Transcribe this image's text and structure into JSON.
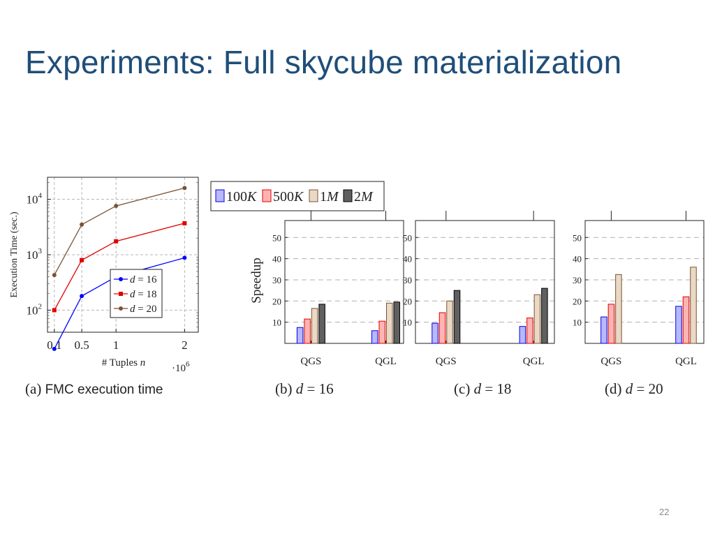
{
  "slide": {
    "title": "Experiments: Full skycube materialization",
    "page_number": "22"
  },
  "chart_data": [
    {
      "type": "line",
      "caption_prefix": "(a)",
      "caption_text": "FMC execution time",
      "xlabel": "# Tuples",
      "xlabel_var": "n",
      "x_multiplier": "·10",
      "x_multiplier_exp": "6",
      "ylabel": "Execution Time (sec.)",
      "y_scale": "log",
      "x": [
        0.1,
        0.5,
        1,
        2
      ],
      "xticks": [
        0.1,
        0.5,
        1,
        2
      ],
      "xtick_labels": [
        "0.1",
        "0.5",
        "1",
        "2"
      ],
      "xlim": [
        0,
        2.2
      ],
      "ylim": [
        40,
        25000
      ],
      "yticks": [
        100,
        1000,
        10000
      ],
      "ytick_base": "10",
      "ytick_exps": [
        "2",
        "3",
        "4"
      ],
      "grid": true,
      "legend_position": "bottom-right",
      "series": [
        {
          "name_var": "d",
          "name_rest": " = 16",
          "color": "#0000ff",
          "marker": "circle",
          "values": [
            20,
            180,
            400,
            880
          ]
        },
        {
          "name_var": "d",
          "name_rest": " = 18",
          "color": "#e00000",
          "marker": "square",
          "values": [
            100,
            800,
            1750,
            3700
          ]
        },
        {
          "name_var": "d",
          "name_rest": " = 20",
          "color": "#7a5236",
          "marker": "circle",
          "values": [
            430,
            3500,
            7600,
            16000
          ]
        }
      ]
    },
    {
      "type": "bar",
      "caption_prefix": "(b)",
      "caption_var": "d",
      "caption_rest": " = 16",
      "ylabel": "Speedup",
      "categories": [
        "QGS",
        "QGL"
      ],
      "ylim": [
        0,
        58
      ],
      "yticks": [
        10,
        20,
        30,
        40,
        50
      ],
      "grid": true,
      "series": [
        {
          "values": [
            7.5,
            6
          ]
        },
        {
          "values": [
            11.5,
            10.5
          ]
        },
        {
          "values": [
            16.5,
            19
          ]
        },
        {
          "values": [
            18.5,
            19.5
          ]
        }
      ]
    },
    {
      "type": "bar",
      "caption_prefix": "(c)",
      "caption_var": "d",
      "caption_rest": " = 18",
      "categories": [
        "QGS",
        "QGL"
      ],
      "ylim": [
        0,
        58
      ],
      "yticks": [
        10,
        20,
        30,
        40,
        50
      ],
      "grid": true,
      "series": [
        {
          "values": [
            9.5,
            8
          ]
        },
        {
          "values": [
            14.5,
            12
          ]
        },
        {
          "values": [
            20,
            23
          ]
        },
        {
          "values": [
            25,
            26
          ]
        }
      ]
    },
    {
      "type": "bar",
      "caption_prefix": "(d)",
      "caption_var": "d",
      "caption_rest": " = 20",
      "categories": [
        "QGS",
        "QGL"
      ],
      "ylim": [
        0,
        58
      ],
      "yticks": [
        10,
        20,
        30,
        40,
        50
      ],
      "grid": true,
      "series": [
        {
          "values": [
            12.5,
            17.5
          ]
        },
        {
          "values": [
            18.5,
            22
          ]
        },
        {
          "values": [
            32.5,
            36
          ]
        }
      ]
    }
  ],
  "bar_legend": {
    "position": "top",
    "items": [
      {
        "num": "100",
        "unit": "K",
        "fill": "#b8b8ff",
        "stroke": "#0000dd"
      },
      {
        "num": "500",
        "unit": "K",
        "fill": "#ffb3b3",
        "stroke": "#e00000"
      },
      {
        "num": "1",
        "unit": "M",
        "fill": "#ead9c4",
        "stroke": "#7a5236"
      },
      {
        "num": "2",
        "unit": "M",
        "fill": "#606060",
        "stroke": "#000000"
      }
    ]
  }
}
